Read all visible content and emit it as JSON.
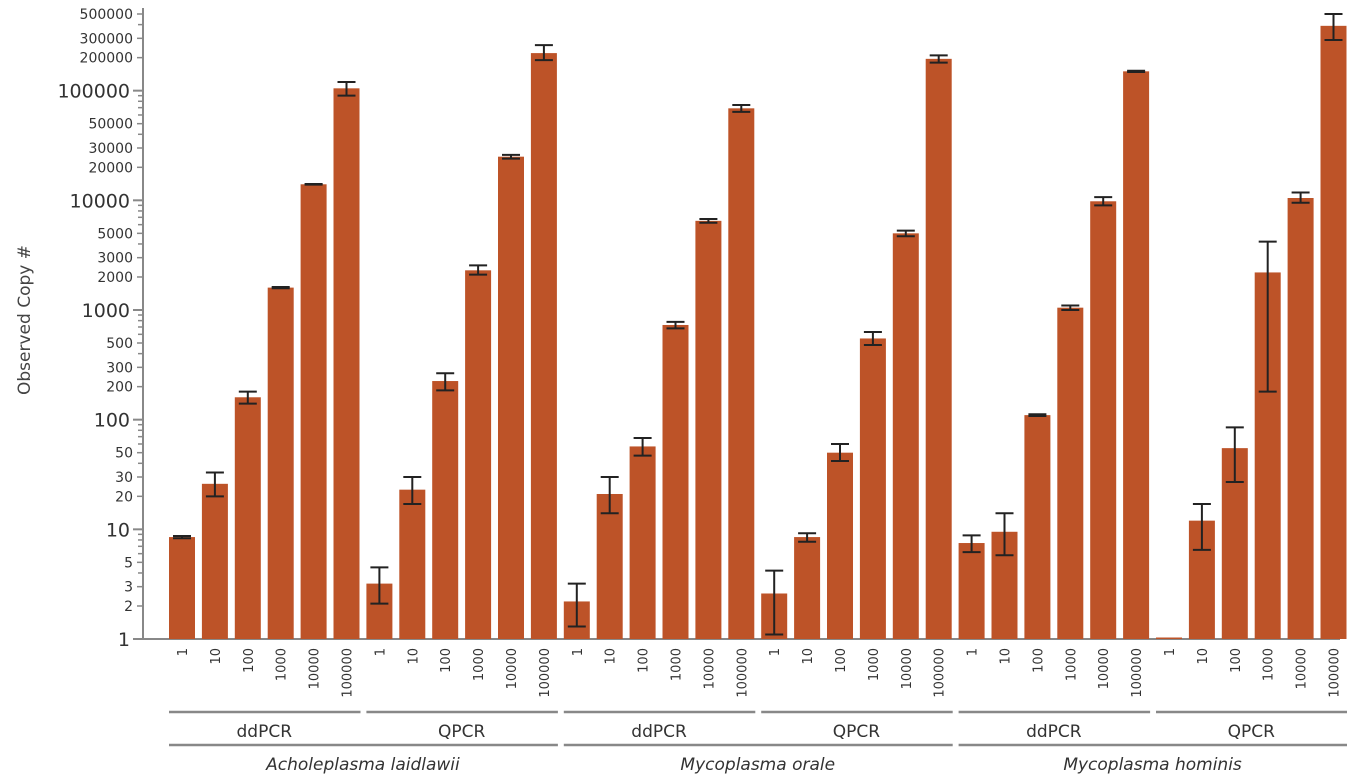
{
  "chart_data": {
    "type": "bar",
    "yscale": "log",
    "ylim": [
      1,
      500000
    ],
    "ylabel": "Observed Copy #",
    "grid": false,
    "legend": "none",
    "colors": {
      "bar": "#bd5328",
      "error": "#222222",
      "axis": "#888888",
      "text": "#333333"
    },
    "y_ticks_major": [
      {
        "value": 1,
        "label": "1"
      },
      {
        "value": 10,
        "label": "10"
      },
      {
        "value": 100,
        "label": "100"
      },
      {
        "value": 1000,
        "label": "1000"
      },
      {
        "value": 10000,
        "label": "10000"
      },
      {
        "value": 100000,
        "label": "100000"
      }
    ],
    "y_ticks_minor": [
      {
        "value": 2,
        "label": "2"
      },
      {
        "value": 3,
        "label": "3"
      },
      {
        "value": 5,
        "label": "5"
      },
      {
        "value": 20,
        "label": "20"
      },
      {
        "value": 30,
        "label": "30"
      },
      {
        "value": 50,
        "label": "50"
      },
      {
        "value": 200,
        "label": "200"
      },
      {
        "value": 300,
        "label": "300"
      },
      {
        "value": 500,
        "label": "500"
      },
      {
        "value": 2000,
        "label": "2000"
      },
      {
        "value": 3000,
        "label": "3000"
      },
      {
        "value": 5000,
        "label": "5000"
      },
      {
        "value": 20000,
        "label": "20000"
      },
      {
        "value": 30000,
        "label": "30000"
      },
      {
        "value": 50000,
        "label": "50000"
      },
      {
        "value": 200000,
        "label": "200000"
      },
      {
        "value": 300000,
        "label": "300000"
      },
      {
        "value": 500000,
        "label": "500000"
      }
    ],
    "y_ticks_unlabeled": [
      4,
      6,
      7,
      8,
      9,
      40,
      60,
      70,
      80,
      90,
      400,
      600,
      700,
      800,
      900,
      4000,
      6000,
      7000,
      8000,
      9000,
      40000,
      60000,
      70000,
      80000,
      90000,
      400000
    ],
    "categories": [
      "1",
      "10",
      "100",
      "1000",
      "10000",
      "100000"
    ],
    "species": [
      {
        "name": "Acholeplasma laidlawii",
        "methods": [
          {
            "name": "ddPCR",
            "values": [
              8.5,
              26,
              160,
              1600,
              14000,
              105000
            ],
            "err_low": [
              8.3,
              20,
              140,
              1580,
              13900,
              90000
            ],
            "err_high": [
              8.7,
              33,
              180,
              1620,
              14100,
              120000
            ]
          },
          {
            "name": "QPCR",
            "values": [
              3.2,
              23,
              225,
              2300,
              25000,
              220000
            ],
            "err_low": [
              2.1,
              17,
              185,
              2100,
              24000,
              190000
            ],
            "err_high": [
              4.5,
              30,
              265,
              2550,
              26000,
              260000
            ]
          }
        ]
      },
      {
        "name": "Mycoplasma orale",
        "methods": [
          {
            "name": "ddPCR",
            "values": [
              2.2,
              21,
              57,
              730,
              6500,
              69000
            ],
            "err_low": [
              1.3,
              14,
              47,
              680,
              6250,
              64000
            ],
            "err_high": [
              3.2,
              30,
              68,
              780,
              6750,
              74000
            ]
          },
          {
            "name": "QPCR",
            "values": [
              2.6,
              8.5,
              50,
              550,
              5000,
              195000
            ],
            "err_low": [
              1.1,
              7.7,
              42,
              480,
              4700,
              180000
            ],
            "err_high": [
              4.2,
              9.2,
              60,
              630,
              5300,
              210000
            ]
          }
        ]
      },
      {
        "name": "Mycoplasma hominis",
        "methods": [
          {
            "name": "ddPCR",
            "values": [
              7.5,
              9.5,
              110,
              1050,
              9800,
              150000
            ],
            "err_low": [
              6.2,
              5.8,
              108,
              1000,
              9000,
              148000
            ],
            "err_high": [
              8.8,
              14,
              112,
              1100,
              10700,
              152000
            ]
          },
          {
            "name": "QPCR",
            "values": [
              0.98,
              12,
              55,
              2200,
              10500,
              390000
            ],
            "err_low": [
              0.98,
              6.5,
              27,
              180,
              9500,
              290000
            ],
            "err_high": [
              0.98,
              17,
              85,
              4200,
              11800,
              500000
            ]
          }
        ]
      }
    ]
  }
}
